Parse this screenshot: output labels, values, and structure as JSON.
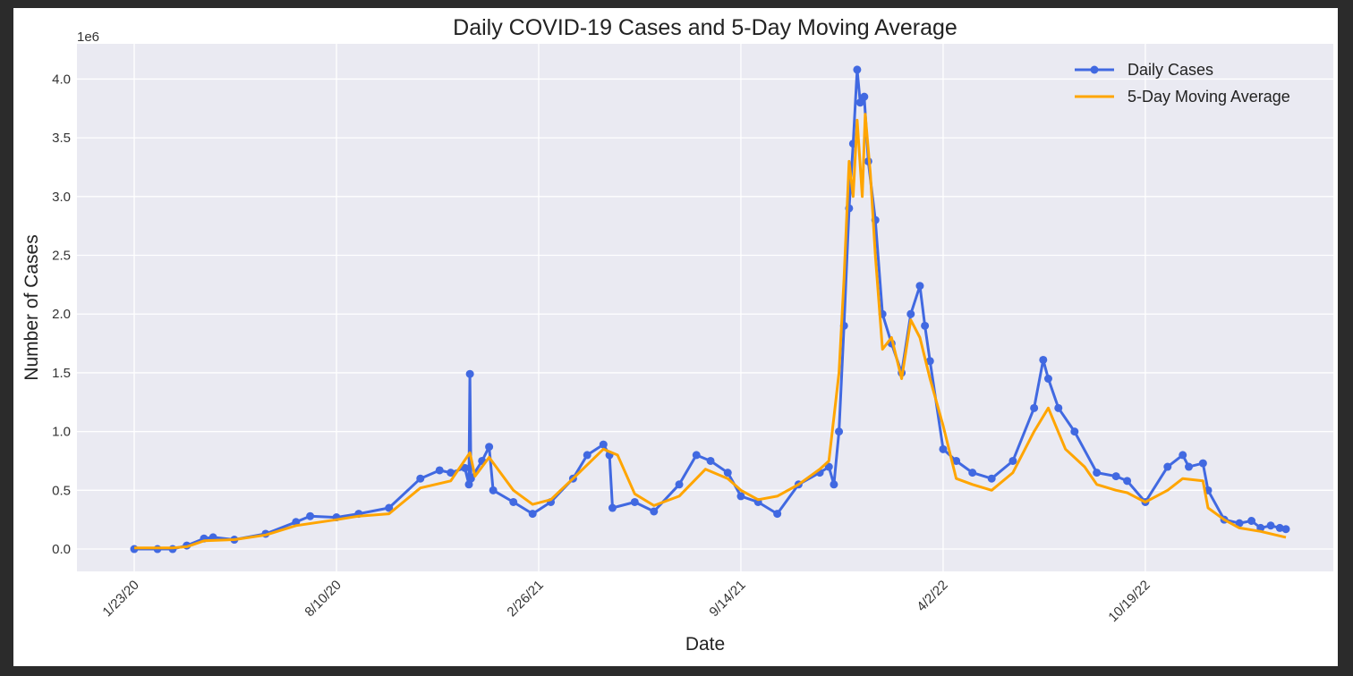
{
  "chart_data": {
    "type": "line",
    "title": "Daily COVID-19 Cases and 5-Day Moving Average",
    "xlabel": "Date",
    "ylabel": "Number of Cases",
    "y_offset_label": "1e6",
    "ylim": [
      -0.19,
      4.3
    ],
    "y_ticks": [
      0.0,
      0.5,
      1.0,
      1.5,
      2.0,
      2.5,
      3.0,
      3.5,
      4.0
    ],
    "y_tick_labels": [
      "0.0",
      "0.5",
      "1.0",
      "1.5",
      "2.0",
      "2.5",
      "3.0",
      "3.5",
      "4.0"
    ],
    "x_ticks": [
      "2020-01-23",
      "2020-08-10",
      "2021-02-26",
      "2021-09-14",
      "2022-04-02",
      "2022-10-19"
    ],
    "x_tick_labels": [
      "1/23/20",
      "8/10/20",
      "2/26/21",
      "9/14/21",
      "4/2/22",
      "10/19/22"
    ],
    "grid": true,
    "legend_position": "top-right",
    "colors": {
      "daily": "#4169e1",
      "moving_average": "#ffa500",
      "plot_background": "#eaeaf2",
      "grid": "#ffffff",
      "page_background": "#2b2b2b"
    },
    "series": [
      {
        "name": "Daily Cases",
        "marker": "circle",
        "color": "#4169e1",
        "x": [
          "2020-01-23",
          "2020-02-15",
          "2020-03-01",
          "2020-03-15",
          "2020-04-01",
          "2020-04-10",
          "2020-05-01",
          "2020-06-01",
          "2020-07-01",
          "2020-07-15",
          "2020-08-10",
          "2020-09-01",
          "2020-10-01",
          "2020-11-01",
          "2020-11-20",
          "2020-12-01",
          "2020-12-15",
          "2020-12-19",
          "2020-12-20",
          "2020-12-21",
          "2021-01-01",
          "2021-01-08",
          "2021-01-12",
          "2021-02-01",
          "2021-02-20",
          "2021-03-10",
          "2021-04-01",
          "2021-04-15",
          "2021-05-01",
          "2021-05-07",
          "2021-05-10",
          "2021-06-01",
          "2021-06-20",
          "2021-07-15",
          "2021-08-01",
          "2021-08-15",
          "2021-09-01",
          "2021-09-14",
          "2021-10-01",
          "2021-10-20",
          "2021-11-10",
          "2021-12-01",
          "2021-12-10",
          "2021-12-15",
          "2021-12-20",
          "2021-12-25",
          "2021-12-30",
          "2022-01-03",
          "2022-01-07",
          "2022-01-10",
          "2022-01-14",
          "2022-01-18",
          "2022-01-25",
          "2022-02-01",
          "2022-02-10",
          "2022-02-20",
          "2022-03-01",
          "2022-03-10",
          "2022-03-15",
          "2022-03-20",
          "2022-04-02",
          "2022-04-15",
          "2022-05-01",
          "2022-05-20",
          "2022-06-10",
          "2022-07-01",
          "2022-07-10",
          "2022-07-15",
          "2022-07-25",
          "2022-08-10",
          "2022-09-01",
          "2022-09-20",
          "2022-10-01",
          "2022-10-19",
          "2022-11-10",
          "2022-11-25",
          "2022-12-01",
          "2022-12-15",
          "2022-12-20",
          "2023-01-05",
          "2023-01-20",
          "2023-02-01",
          "2023-02-10",
          "2023-02-20",
          "2023-03-01",
          "2023-03-07"
        ],
        "values": [
          0.0,
          0.0,
          0.0,
          0.03,
          0.09,
          0.1,
          0.08,
          0.13,
          0.23,
          0.28,
          0.27,
          0.3,
          0.35,
          0.6,
          0.67,
          0.65,
          0.69,
          0.55,
          1.49,
          0.6,
          0.75,
          0.87,
          0.5,
          0.4,
          0.3,
          0.4,
          0.6,
          0.8,
          0.89,
          0.8,
          0.35,
          0.4,
          0.32,
          0.55,
          0.8,
          0.75,
          0.65,
          0.45,
          0.4,
          0.3,
          0.55,
          0.65,
          0.7,
          0.55,
          1.0,
          1.9,
          2.9,
          3.45,
          4.08,
          3.8,
          3.85,
          3.3,
          2.8,
          2.0,
          1.75,
          1.5,
          2.0,
          2.24,
          1.9,
          1.6,
          0.85,
          0.75,
          0.65,
          0.6,
          0.75,
          1.2,
          1.61,
          1.45,
          1.2,
          1.0,
          0.65,
          0.62,
          0.58,
          0.4,
          0.7,
          0.8,
          0.7,
          0.73,
          0.5,
          0.25,
          0.22,
          0.24,
          0.18,
          0.2,
          0.18,
          0.17
        ]
      },
      {
        "name": "5-Day Moving Average",
        "marker": "none",
        "color": "#ffa500",
        "x": [
          "2020-01-23",
          "2020-02-15",
          "2020-03-01",
          "2020-03-15",
          "2020-04-01",
          "2020-05-01",
          "2020-06-01",
          "2020-07-01",
          "2020-08-10",
          "2020-09-01",
          "2020-10-01",
          "2020-11-01",
          "2020-12-01",
          "2020-12-20",
          "2020-12-25",
          "2021-01-08",
          "2021-02-01",
          "2021-02-20",
          "2021-03-10",
          "2021-04-01",
          "2021-05-01",
          "2021-05-15",
          "2021-06-01",
          "2021-06-20",
          "2021-07-15",
          "2021-08-10",
          "2021-09-01",
          "2021-09-14",
          "2021-10-01",
          "2021-10-20",
          "2021-11-10",
          "2021-12-01",
          "2021-12-10",
          "2021-12-20",
          "2021-12-25",
          "2021-12-30",
          "2022-01-03",
          "2022-01-07",
          "2022-01-12",
          "2022-01-15",
          "2022-01-20",
          "2022-01-25",
          "2022-02-01",
          "2022-02-10",
          "2022-02-20",
          "2022-03-01",
          "2022-03-10",
          "2022-03-20",
          "2022-04-02",
          "2022-04-15",
          "2022-05-01",
          "2022-05-20",
          "2022-06-10",
          "2022-07-01",
          "2022-07-15",
          "2022-08-01",
          "2022-08-20",
          "2022-09-01",
          "2022-09-20",
          "2022-10-01",
          "2022-10-19",
          "2022-11-10",
          "2022-11-25",
          "2022-12-15",
          "2022-12-20",
          "2023-01-05",
          "2023-01-20",
          "2023-02-10",
          "2023-03-07"
        ],
        "values": [
          0.01,
          0.01,
          0.01,
          0.02,
          0.07,
          0.08,
          0.12,
          0.2,
          0.25,
          0.28,
          0.3,
          0.52,
          0.58,
          0.82,
          0.62,
          0.78,
          0.5,
          0.38,
          0.42,
          0.6,
          0.85,
          0.8,
          0.47,
          0.37,
          0.45,
          0.68,
          0.6,
          0.5,
          0.42,
          0.45,
          0.55,
          0.68,
          0.75,
          1.5,
          2.3,
          3.3,
          3.0,
          3.65,
          3.0,
          3.7,
          3.2,
          2.5,
          1.7,
          1.8,
          1.45,
          1.95,
          1.8,
          1.45,
          1.05,
          0.6,
          0.55,
          0.5,
          0.65,
          1.0,
          1.2,
          0.85,
          0.7,
          0.55,
          0.5,
          0.48,
          0.4,
          0.5,
          0.6,
          0.58,
          0.35,
          0.25,
          0.18,
          0.15,
          0.1
        ]
      }
    ]
  }
}
